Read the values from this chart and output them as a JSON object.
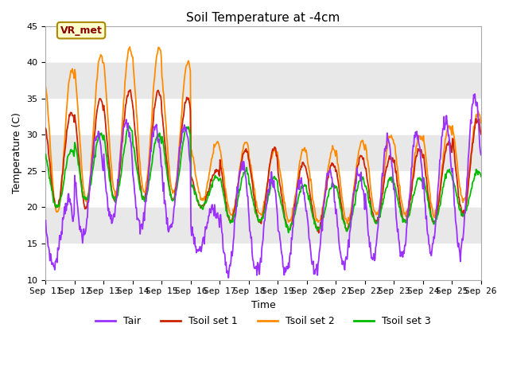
{
  "title": "Soil Temperature at -4cm",
  "xlabel": "Time",
  "ylabel": "Temperature (C)",
  "ylim": [
    10,
    45
  ],
  "line_colors": {
    "Tair": "#9B30FF",
    "Tsoil_set1": "#CC2200",
    "Tsoil_set2": "#FF8C00",
    "Tsoil_set3": "#00BB00"
  },
  "legend_labels": [
    "Tair",
    "Tsoil set 1",
    "Tsoil set 2",
    "Tsoil set 3"
  ],
  "annotation_text": "VR_met",
  "annotation_bg": "#FFFFCC",
  "annotation_border": "#AA8800",
  "annotation_text_color": "#880000",
  "title_fontsize": 11,
  "axis_fontsize": 9,
  "tick_fontsize": 8,
  "xtick_labels": [
    "Sep 11",
    "Sep 12",
    "Sep 13",
    "Sep 14",
    "Sep 15",
    "Sep 16",
    "Sep 17",
    "Sep 18",
    "Sep 19",
    "Sep 20",
    "Sep 21",
    "Sep 22",
    "Sep 23",
    "Sep 24",
    "Sep 25",
    "Sep 26"
  ],
  "ytick_values": [
    10,
    15,
    20,
    25,
    30,
    35,
    40,
    45
  ],
  "band_colors": [
    "#ffffff",
    "#e8e8e8"
  ],
  "tair_min": [
    12,
    16,
    18,
    17,
    17,
    14,
    11,
    11,
    11,
    11,
    12,
    13,
    13,
    14,
    14
  ],
  "tair_max": [
    21,
    30,
    32,
    31,
    31,
    20,
    26,
    24,
    24,
    25,
    25,
    29,
    30,
    32,
    35
  ],
  "tsoil1_min": [
    20,
    20,
    21,
    21,
    21,
    20,
    18,
    18,
    17,
    17,
    17,
    18,
    18,
    18,
    19
  ],
  "tsoil1_max": [
    33,
    35,
    36,
    36,
    35,
    25,
    28,
    28,
    26,
    26,
    27,
    27,
    28,
    29,
    32
  ],
  "tsoil2_min": [
    19,
    21,
    22,
    22,
    22,
    21,
    19,
    19,
    18,
    18,
    18,
    19,
    19,
    19,
    21
  ],
  "tsoil2_max": [
    39,
    41,
    42,
    42,
    40,
    29,
    29,
    28,
    28,
    28,
    29,
    30,
    30,
    31,
    33
  ],
  "tsoil3_min": [
    20,
    21,
    21,
    21,
    21,
    20,
    18,
    18,
    17,
    17,
    17,
    18,
    18,
    18,
    19
  ],
  "tsoil3_max": [
    28,
    30,
    31,
    30,
    31,
    24,
    25,
    24,
    23,
    23,
    24,
    24,
    24,
    25,
    25
  ]
}
